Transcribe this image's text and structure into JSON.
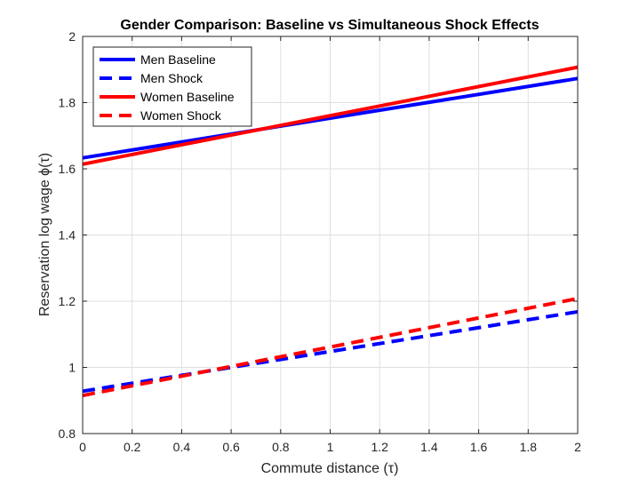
{
  "chart_data": {
    "type": "line",
    "title": "Gender Comparison: Baseline vs Simultaneous Shock Effects",
    "xlabel": "Commute distance (τ)",
    "ylabel": "Reservation log wage ϕ(τ)",
    "xlim": [
      0,
      2
    ],
    "ylim": [
      0.8,
      2
    ],
    "xticks": [
      "0",
      "0.2",
      "0.4",
      "0.6",
      "0.8",
      "1",
      "1.2",
      "1.4",
      "1.6",
      "1.8",
      "2"
    ],
    "yticks": [
      "0.8",
      "1",
      "1.2",
      "1.4",
      "1.6",
      "1.8",
      "2"
    ],
    "grid": true,
    "legend_position": "top-left",
    "series": [
      {
        "name": "Men Baseline",
        "color": "#0000ff",
        "style": "solid",
        "x": [
          0,
          2
        ],
        "y": [
          1.633,
          1.873
        ]
      },
      {
        "name": "Men Shock",
        "color": "#0000ff",
        "style": "dashed",
        "x": [
          0,
          2
        ],
        "y": [
          0.928,
          1.168
        ]
      },
      {
        "name": "Women Baseline",
        "color": "#ff0000",
        "style": "solid",
        "x": [
          0,
          2
        ],
        "y": [
          1.614,
          1.907
        ]
      },
      {
        "name": "Women Shock",
        "color": "#ff0000",
        "style": "dashed",
        "x": [
          0,
          2
        ],
        "y": [
          0.915,
          1.208
        ]
      }
    ]
  }
}
